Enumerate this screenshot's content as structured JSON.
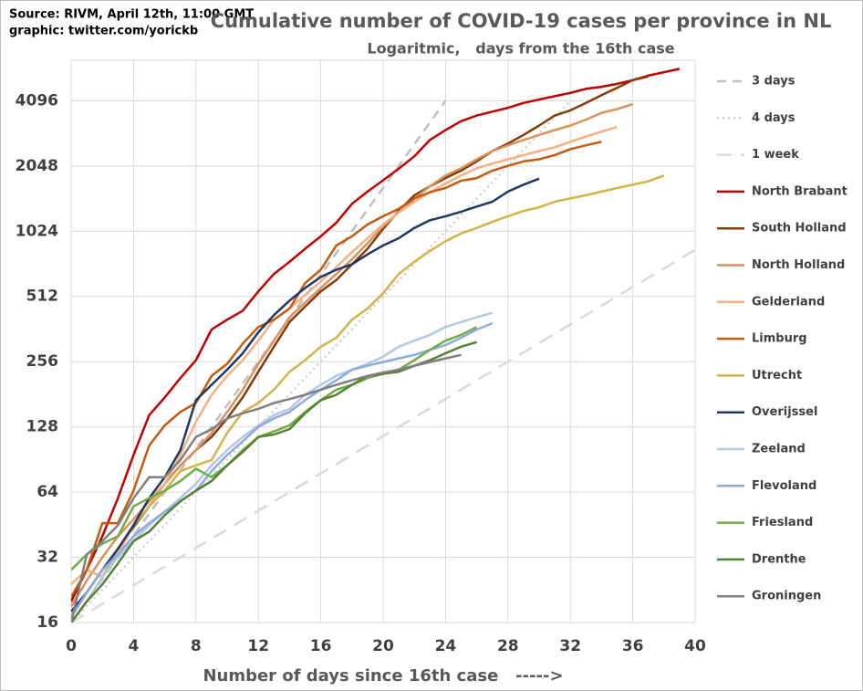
{
  "chart_data": {
    "type": "line",
    "title": "Cumulative number of COVID-19 cases per province in NL",
    "subtitle": "Logaritmic,   days from the 16th case",
    "source": "Source: RIVM, April 12th, 11:00  GMT",
    "credit": "graphic: twitter.com/yorickb",
    "x_label": "Number of days since 16th case   ----->",
    "yscale": "log",
    "grid": true,
    "legend": "right",
    "xlim": [
      0,
      40
    ],
    "xticks": [
      0,
      4,
      8,
      12,
      16,
      20,
      24,
      28,
      32,
      36,
      40
    ],
    "ylim": [
      16,
      6300
    ],
    "yticks": [
      16,
      32,
      64,
      128,
      256,
      512,
      1024,
      2048,
      4096
    ],
    "reference_lines": [
      {
        "name": "3 days",
        "color": "#bfbfbf",
        "style": "dashed",
        "x": [
          0,
          24
        ],
        "values": [
          16,
          4096
        ]
      },
      {
        "name": "4 days",
        "color": "#cfcfcf",
        "style": "dotted",
        "x": [
          0,
          32
        ],
        "values": [
          16,
          4096
        ]
      },
      {
        "name": "1 week",
        "color": "#d9d9d9",
        "style": "long-dashed",
        "x": [
          0,
          40
        ],
        "values": [
          16,
          840
        ]
      }
    ],
    "x": [
      0,
      1,
      2,
      3,
      4,
      5,
      6,
      7,
      8,
      9,
      10,
      11,
      12,
      13,
      14,
      15,
      16,
      17,
      18,
      19,
      20,
      21,
      22,
      23,
      24,
      25,
      26,
      27,
      28,
      29,
      30,
      31,
      32,
      33,
      34,
      35,
      36,
      37,
      38,
      39
    ],
    "series": [
      {
        "name": "North Brabant",
        "color": "#c00000",
        "values": [
          20,
          28,
          40,
          60,
          95,
          145,
          175,
          215,
          260,
          360,
          400,
          440,
          540,
          650,
          740,
          850,
          970,
          1120,
          1370,
          1560,
          1760,
          1990,
          2270,
          2700,
          3000,
          3300,
          3500,
          3650,
          3800,
          4000,
          4150,
          4300,
          4450,
          4650,
          4750,
          4900,
          5100,
          5350,
          5550,
          5750
        ]
      },
      {
        "name": "South Holland",
        "color": "#843c0c",
        "values": [
          17,
          22,
          28,
          35,
          44,
          55,
          70,
          85,
          100,
          115,
          140,
          175,
          230,
          300,
          390,
          460,
          540,
          610,
          720,
          850,
          1050,
          1270,
          1500,
          1650,
          1800,
          1950,
          2150,
          2400,
          2600,
          2850,
          3150,
          3500,
          3700,
          4000,
          4350,
          4700,
          5100,
          5300,
          null,
          null
        ]
      },
      {
        "name": "North Holland",
        "color": "#d9925e",
        "values": [
          19,
          25,
          32,
          40,
          48,
          58,
          70,
          85,
          100,
          120,
          150,
          190,
          250,
          320,
          410,
          480,
          560,
          650,
          760,
          900,
          1080,
          1250,
          1450,
          1650,
          1850,
          2000,
          2200,
          2400,
          2550,
          2700,
          2850,
          3000,
          3150,
          3350,
          3600,
          3750,
          3950,
          null,
          null,
          null
        ]
      },
      {
        "name": "Gelderland",
        "color": "#f4b183",
        "values": [
          24,
          28,
          26,
          33,
          45,
          55,
          70,
          95,
          135,
          180,
          220,
          260,
          320,
          400,
          450,
          520,
          600,
          700,
          820,
          950,
          1100,
          1250,
          1400,
          1550,
          1700,
          1850,
          2000,
          2100,
          2200,
          2300,
          2400,
          2500,
          2650,
          2800,
          2950,
          3100,
          null,
          null,
          null,
          null
        ]
      },
      {
        "name": "Limburg",
        "color": "#c55a11",
        "values": [
          21,
          28,
          46,
          46,
          65,
          105,
          130,
          150,
          165,
          220,
          250,
          310,
          370,
          400,
          450,
          590,
          680,
          880,
          970,
          1100,
          1200,
          1300,
          1450,
          1550,
          1620,
          1750,
          1800,
          1950,
          2050,
          2150,
          2200,
          2300,
          2450,
          2550,
          2650,
          null,
          null,
          null,
          null,
          null
        ]
      },
      {
        "name": "Utrecht",
        "color": "#d4b349",
        "values": [
          16,
          20,
          26,
          35,
          45,
          55,
          65,
          80,
          85,
          90,
          120,
          150,
          165,
          190,
          230,
          260,
          300,
          330,
          400,
          450,
          530,
          650,
          740,
          830,
          920,
          1000,
          1060,
          1130,
          1200,
          1270,
          1320,
          1400,
          1450,
          1500,
          1560,
          1620,
          1680,
          1740,
          1850,
          null
        ]
      },
      {
        "name": "Overijssel",
        "color": "#1f3864",
        "values": [
          18,
          22,
          28,
          35,
          45,
          60,
          75,
          100,
          170,
          200,
          235,
          280,
          350,
          420,
          490,
          560,
          630,
          680,
          720,
          800,
          880,
          950,
          1060,
          1150,
          1200,
          1260,
          1330,
          1400,
          1560,
          1680,
          1790,
          null,
          null,
          null,
          null,
          null,
          null,
          null,
          null,
          null
        ]
      },
      {
        "name": "Zeeland",
        "color": "#b4c7e7",
        "values": [
          16,
          20,
          26,
          32,
          38,
          45,
          52,
          60,
          70,
          85,
          100,
          115,
          130,
          145,
          155,
          180,
          200,
          220,
          235,
          250,
          270,
          300,
          320,
          340,
          370,
          390,
          410,
          430,
          null,
          null,
          null,
          null,
          null,
          null,
          null,
          null,
          null,
          null,
          null,
          null
        ]
      },
      {
        "name": "Flevoland",
        "color": "#8faadc",
        "values": [
          17,
          22,
          28,
          33,
          40,
          46,
          52,
          58,
          65,
          80,
          95,
          110,
          128,
          140,
          150,
          170,
          190,
          210,
          235,
          245,
          255,
          265,
          275,
          290,
          305,
          330,
          360,
          385,
          null,
          null,
          null,
          null,
          null,
          null,
          null,
          null,
          null,
          null,
          null,
          null
        ]
      },
      {
        "name": "Friesland",
        "color": "#70ad47",
        "values": [
          28,
          33,
          37,
          40,
          55,
          60,
          65,
          72,
          82,
          75,
          85,
          100,
          115,
          122,
          130,
          150,
          170,
          190,
          200,
          215,
          225,
          235,
          260,
          290,
          320,
          340,
          370,
          null,
          null,
          null,
          null,
          null,
          null,
          null,
          null,
          null,
          null,
          null,
          null,
          null
        ]
      },
      {
        "name": "Drenthe",
        "color": "#548235",
        "values": [
          16,
          20,
          24,
          30,
          38,
          42,
          50,
          58,
          65,
          72,
          85,
          98,
          115,
          118,
          125,
          148,
          170,
          180,
          200,
          220,
          225,
          230,
          245,
          260,
          280,
          300,
          315,
          null,
          null,
          null,
          null,
          null,
          null,
          null,
          null,
          null,
          null,
          null,
          null,
          null
        ]
      },
      {
        "name": "Groningen",
        "color": "#7f7f7f",
        "values": [
          16,
          33,
          38,
          45,
          60,
          75,
          75,
          90,
          115,
          125,
          140,
          148,
          155,
          165,
          172,
          180,
          190,
          200,
          210,
          220,
          228,
          235,
          245,
          255,
          265,
          275,
          null,
          null,
          null,
          null,
          null,
          null,
          null,
          null,
          null,
          null,
          null,
          null,
          null,
          null
        ]
      }
    ]
  }
}
